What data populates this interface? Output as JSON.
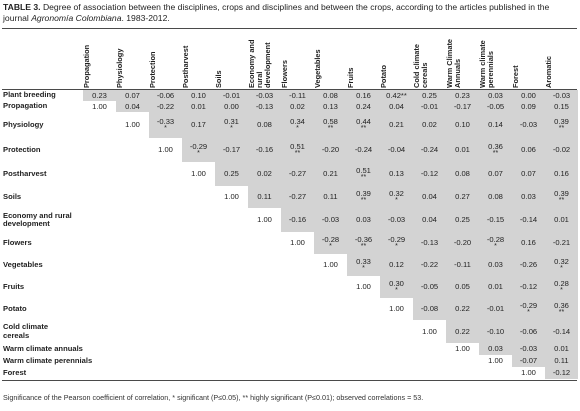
{
  "caption": {
    "label": "TABLE 3.",
    "text_before_journal": " Degree of association between the disciplines, crops and disciplines and between the crops, according to the articles published in the journal ",
    "journal": "Agronomía Colombiana",
    "text_after_journal": ". 1983-2012."
  },
  "columns": [
    "Propagation",
    "Physiology",
    "Protection",
    "Postharvest",
    "Soils",
    "Economy and rural development",
    "Flowers",
    "Vegetables",
    "Fruits",
    "Potato",
    "Cold climate cereals",
    "Warm Climate Annuals",
    "Warm climate perennials",
    "Forest",
    "Aromatic"
  ],
  "rows": [
    {
      "label": "Plant breeding",
      "cells": [
        [
          "0.23",
          "",
          true
        ],
        [
          "0.07",
          "",
          true
        ],
        [
          "-0.06",
          "",
          true
        ],
        [
          "0.10",
          "",
          true
        ],
        [
          "-0.01",
          "",
          true
        ],
        [
          "-0.03",
          "",
          true
        ],
        [
          "-0.11",
          "",
          true
        ],
        [
          "0.08",
          "",
          true
        ],
        [
          "0.16",
          "",
          true
        ],
        [
          "0.42",
          "**",
          true
        ],
        [
          "0.25",
          "",
          true
        ],
        [
          "0.23",
          "",
          true
        ],
        [
          "0.03",
          "",
          true
        ],
        [
          "0.00",
          "",
          true
        ],
        [
          "-0.03",
          "",
          true
        ]
      ]
    },
    {
      "label": "Propagation",
      "cells": [
        [
          "1.00",
          "",
          false
        ],
        [
          "0.04",
          "",
          true
        ],
        [
          "-0.22",
          "",
          true
        ],
        [
          "0.01",
          "",
          true
        ],
        [
          "0.00",
          "",
          true
        ],
        [
          "-0.13",
          "",
          true
        ],
        [
          "0.02",
          "",
          true
        ],
        [
          "0.13",
          "",
          true
        ],
        [
          "0.24",
          "",
          true
        ],
        [
          "0.04",
          "",
          true
        ],
        [
          "-0.01",
          "",
          true
        ],
        [
          "-0.17",
          "",
          true
        ],
        [
          "-0.05",
          "",
          true
        ],
        [
          "0.09",
          "",
          true
        ],
        [
          "0.15",
          "",
          true
        ]
      ]
    },
    {
      "label": "Physiology",
      "cells": [
        null,
        [
          "1.00",
          "",
          false
        ],
        [
          "-0.33",
          "*",
          true
        ],
        [
          "0.17",
          "",
          true
        ],
        [
          "0.31",
          "*",
          true
        ],
        [
          "0.08",
          "",
          true
        ],
        [
          "0.34",
          "*",
          true
        ],
        [
          "0.58",
          "**",
          true
        ],
        [
          "0.44",
          "**",
          true
        ],
        [
          "0.21",
          "",
          true
        ],
        [
          "0.02",
          "",
          true
        ],
        [
          "0.10",
          "",
          true
        ],
        [
          "0.14",
          "",
          true
        ],
        [
          "-0.03",
          "",
          true
        ],
        [
          "0.39",
          "**",
          true
        ]
      ]
    },
    {
      "label": "Protection",
      "cells": [
        null,
        null,
        [
          "1.00",
          "",
          false
        ],
        [
          "-0.29",
          "*",
          true
        ],
        [
          "-0.17",
          "",
          true
        ],
        [
          "-0.16",
          "",
          true
        ],
        [
          "0.51",
          "**",
          true
        ],
        [
          "-0.20",
          "",
          true
        ],
        [
          "-0.24",
          "",
          true
        ],
        [
          "-0.04",
          "",
          true
        ],
        [
          "-0.24",
          "",
          true
        ],
        [
          "0.01",
          "",
          true
        ],
        [
          "0.36",
          "**",
          true
        ],
        [
          "0.06",
          "",
          true
        ],
        [
          "-0.02",
          "",
          true
        ]
      ]
    },
    {
      "label": "Postharvest",
      "cells": [
        null,
        null,
        null,
        [
          "1.00",
          "",
          false
        ],
        [
          "0.25",
          "",
          true
        ],
        [
          "0.02",
          "",
          true
        ],
        [
          "-0.27",
          "",
          true
        ],
        [
          "0.21",
          "",
          true
        ],
        [
          "0.51",
          "**",
          true
        ],
        [
          "0.13",
          "",
          true
        ],
        [
          "-0.12",
          "",
          true
        ],
        [
          "0.08",
          "",
          true
        ],
        [
          "0.07",
          "",
          true
        ],
        [
          "0.07",
          "",
          true
        ],
        [
          "0.16",
          "",
          true
        ]
      ]
    },
    {
      "label": "Soils",
      "cells": [
        null,
        null,
        null,
        null,
        [
          "1.00",
          "",
          false
        ],
        [
          "0.11",
          "",
          true
        ],
        [
          "-0.27",
          "",
          true
        ],
        [
          "0.11",
          "",
          true
        ],
        [
          "0.39",
          "**",
          true
        ],
        [
          "0.32",
          "*",
          true
        ],
        [
          "0.04",
          "",
          true
        ],
        [
          "0.27",
          "",
          true
        ],
        [
          "0.08",
          "",
          true
        ],
        [
          "0.03",
          "",
          true
        ],
        [
          "0.39",
          "**",
          true
        ]
      ]
    },
    {
      "label": "Economy and rural\ndevelopment",
      "cells": [
        null,
        null,
        null,
        null,
        null,
        [
          "1.00",
          "",
          false
        ],
        [
          "-0.16",
          "",
          true
        ],
        [
          "-0.03",
          "",
          true
        ],
        [
          "0.03",
          "",
          true
        ],
        [
          "-0.03",
          "",
          true
        ],
        [
          "0.04",
          "",
          true
        ],
        [
          "0.25",
          "",
          true
        ],
        [
          "-0.15",
          "",
          true
        ],
        [
          "-0.14",
          "",
          true
        ],
        [
          "0.01",
          "",
          true
        ]
      ]
    },
    {
      "label": "Flowers",
      "cells": [
        null,
        null,
        null,
        null,
        null,
        null,
        [
          "1.00",
          "",
          false
        ],
        [
          "-0.28",
          "*",
          true
        ],
        [
          "-0.36",
          "**",
          true
        ],
        [
          "-0.29",
          "*",
          true
        ],
        [
          "-0.13",
          "",
          true
        ],
        [
          "-0.20",
          "",
          true
        ],
        [
          "-0.28",
          "*",
          true
        ],
        [
          "0.16",
          "",
          true
        ],
        [
          "-0.21",
          "",
          true
        ]
      ]
    },
    {
      "label": "Vegetables",
      "cells": [
        null,
        null,
        null,
        null,
        null,
        null,
        null,
        [
          "1.00",
          "",
          false
        ],
        [
          "0.33",
          "*",
          true
        ],
        [
          "0.12",
          "",
          true
        ],
        [
          "-0.22",
          "",
          true
        ],
        [
          "-0.11",
          "",
          true
        ],
        [
          "0.03",
          "",
          true
        ],
        [
          "-0.26",
          "",
          true
        ],
        [
          "0.32",
          "*",
          true
        ]
      ]
    },
    {
      "label": "Fruits",
      "cells": [
        null,
        null,
        null,
        null,
        null,
        null,
        null,
        null,
        [
          "1.00",
          "",
          false
        ],
        [
          "0.30",
          "*",
          true
        ],
        [
          "-0.05",
          "",
          true
        ],
        [
          "0.05",
          "",
          true
        ],
        [
          "0.01",
          "",
          true
        ],
        [
          "-0.12",
          "",
          true
        ],
        [
          "0.28",
          "*",
          true
        ]
      ]
    },
    {
      "label": "Potato",
      "cells": [
        null,
        null,
        null,
        null,
        null,
        null,
        null,
        null,
        null,
        [
          "1.00",
          "",
          false
        ],
        [
          "-0.08",
          "",
          true
        ],
        [
          "0.22",
          "",
          true
        ],
        [
          "-0.01",
          "",
          true
        ],
        [
          "-0.29",
          "*",
          true
        ],
        [
          "0.36",
          "**",
          true
        ]
      ]
    },
    {
      "label": "Cold climate\ncereals",
      "cells": [
        null,
        null,
        null,
        null,
        null,
        null,
        null,
        null,
        null,
        null,
        [
          "1.00",
          "",
          false
        ],
        [
          "0.22",
          "",
          true
        ],
        [
          "-0.10",
          "",
          true
        ],
        [
          "-0.06",
          "",
          true
        ],
        [
          "-0.14",
          "",
          true
        ]
      ]
    },
    {
      "label": "Warm climate annuals",
      "cells": [
        null,
        null,
        null,
        null,
        null,
        null,
        null,
        null,
        null,
        null,
        null,
        [
          "1.00",
          "",
          false
        ],
        [
          "0.03",
          "",
          true
        ],
        [
          "-0.03",
          "",
          true
        ],
        [
          "0.01",
          "",
          true
        ]
      ]
    },
    {
      "label": "Warm climate perennials",
      "cells": [
        null,
        null,
        null,
        null,
        null,
        null,
        null,
        null,
        null,
        null,
        null,
        null,
        [
          "1.00",
          "",
          false
        ],
        [
          "-0.07",
          "",
          true
        ],
        [
          "0.11",
          "",
          true
        ]
      ]
    },
    {
      "label": "Forest",
      "cells": [
        null,
        null,
        null,
        null,
        null,
        null,
        null,
        null,
        null,
        null,
        null,
        null,
        null,
        [
          "1.00",
          "",
          false
        ],
        [
          "-0.12",
          "",
          true
        ]
      ]
    }
  ],
  "footnote": "Significance of the Pearson coefficient of correlation, * significant (P≤0.05), ** highly significant (P≤0.01); observed correlations = 53."
}
